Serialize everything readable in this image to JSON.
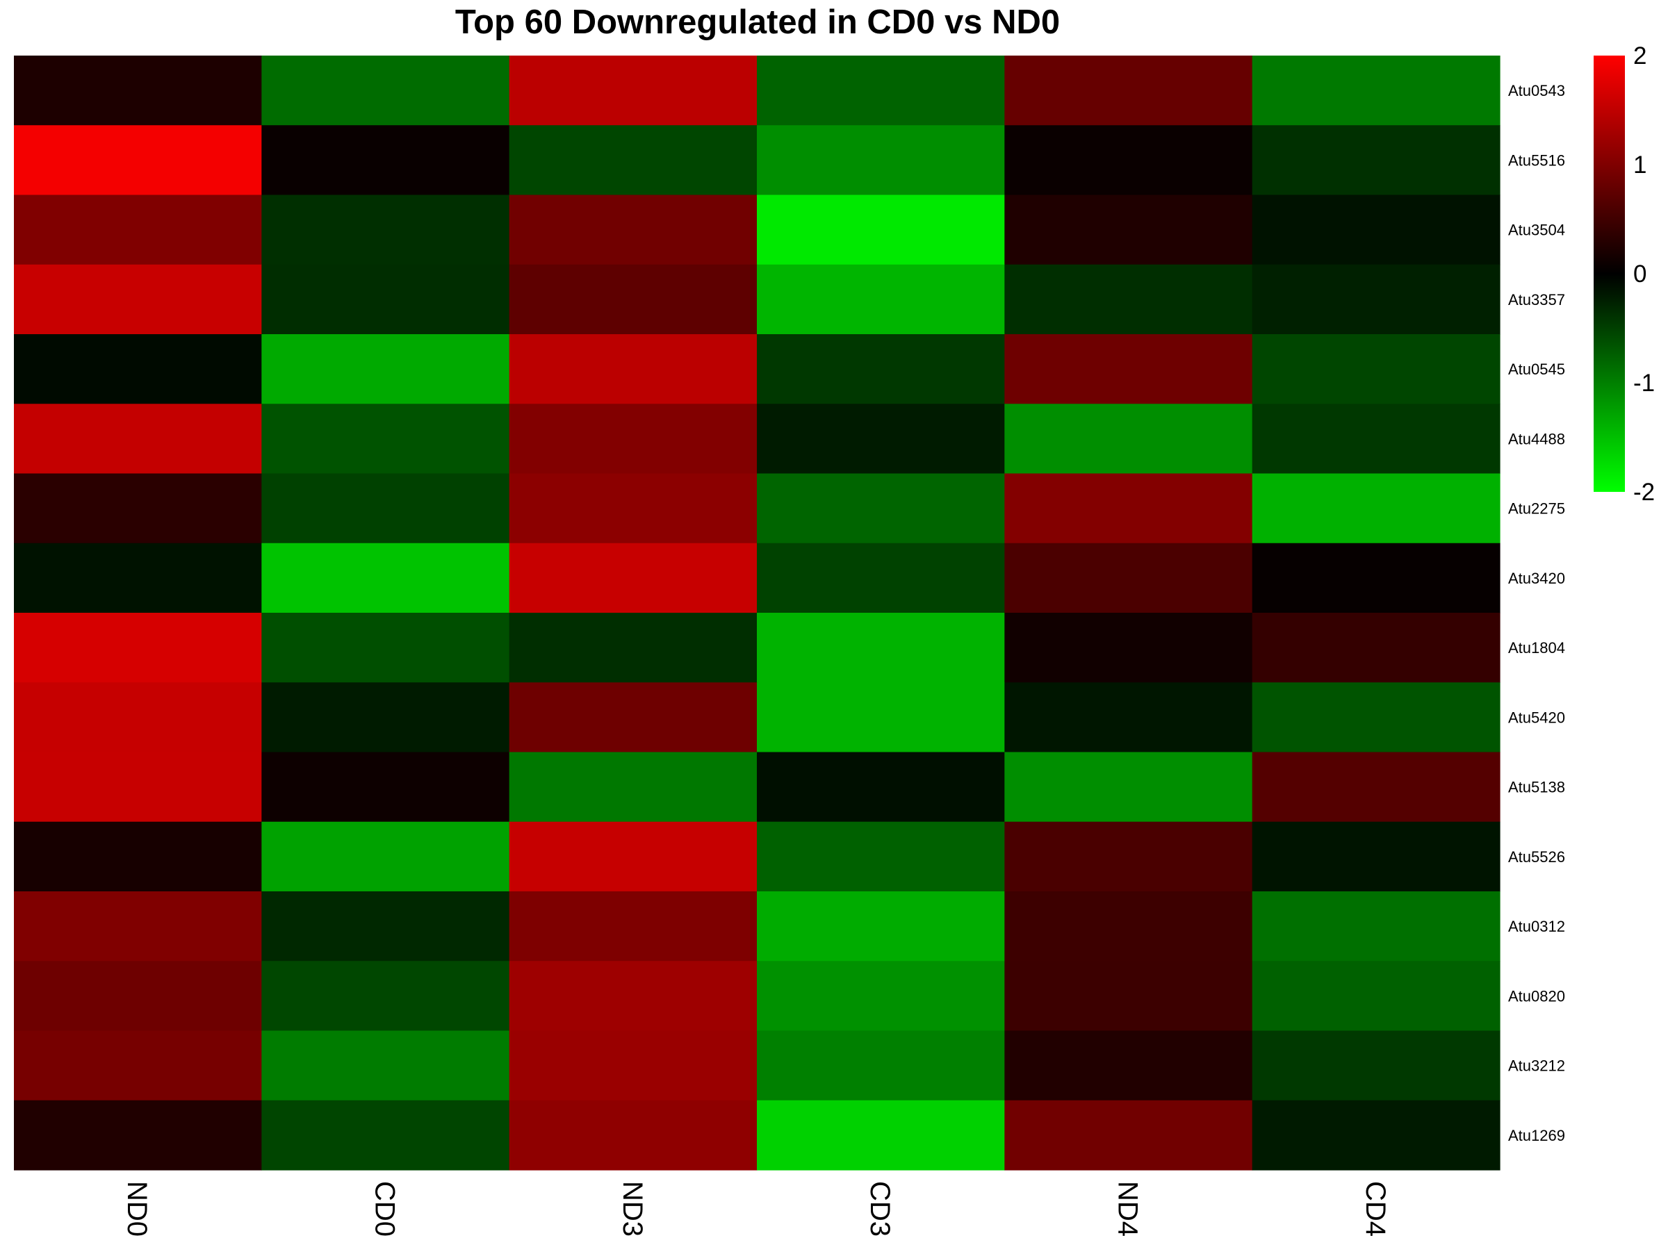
{
  "chart_data": {
    "type": "heatmap",
    "title": "Top 60 Downregulated in CD0 vs ND0",
    "columns": [
      "ND0",
      "CD0",
      "ND3",
      "CD3",
      "ND4",
      "CD4"
    ],
    "rows": [
      "Atu0543",
      "Atu5516",
      "Atu3504",
      "Atu3357",
      "Atu0545",
      "Atu4488",
      "Atu2275",
      "Atu3420",
      "Atu1804",
      "Atu5420",
      "Atu5138",
      "Atu5526",
      "Atu0312",
      "Atu0820",
      "Atu3212",
      "Atu1269"
    ],
    "values": [
      [
        0.23,
        -0.85,
        1.47,
        -0.78,
        0.8,
        -0.95
      ],
      [
        1.91,
        0.07,
        -0.55,
        -1.11,
        0.08,
        -0.38
      ],
      [
        1.0,
        -0.37,
        0.89,
        -1.83,
        0.24,
        -0.14
      ],
      [
        1.57,
        -0.35,
        0.74,
        -1.42,
        -0.36,
        -0.25
      ],
      [
        -0.08,
        -1.33,
        1.47,
        -0.44,
        0.86,
        -0.55
      ],
      [
        1.54,
        -0.65,
        1.02,
        -0.21,
        -1.11,
        -0.44
      ],
      [
        0.33,
        -0.51,
        1.1,
        -0.79,
        1.03,
        -1.39
      ],
      [
        -0.14,
        -1.53,
        1.56,
        -0.52,
        0.59,
        0.05
      ],
      [
        1.68,
        -0.62,
        -0.36,
        -1.4,
        0.13,
        0.41
      ],
      [
        1.55,
        -0.21,
        0.86,
        -1.4,
        -0.17,
        -0.66
      ],
      [
        1.56,
        0.1,
        -0.94,
        -0.12,
        -1.11,
        0.66
      ],
      [
        0.18,
        -1.27,
        1.55,
        -0.76,
        0.58,
        -0.16
      ],
      [
        1.0,
        -0.31,
        0.99,
        -1.35,
        0.48,
        -0.88
      ],
      [
        0.86,
        -0.56,
        1.24,
        -1.14,
        0.47,
        -0.76
      ],
      [
        0.93,
        -0.97,
        1.21,
        -1.0,
        0.26,
        -0.45
      ],
      [
        0.25,
        -0.54,
        1.12,
        -1.64,
        0.89,
        -0.2
      ]
    ],
    "color_scale": {
      "min": -2,
      "max": 2,
      "low_color": "#00ff00",
      "mid_color": "#000000",
      "high_color": "#ff0000",
      "ticks": [
        2,
        1,
        0,
        -1,
        -2
      ]
    },
    "legend_position": "top-right",
    "grid": false
  }
}
